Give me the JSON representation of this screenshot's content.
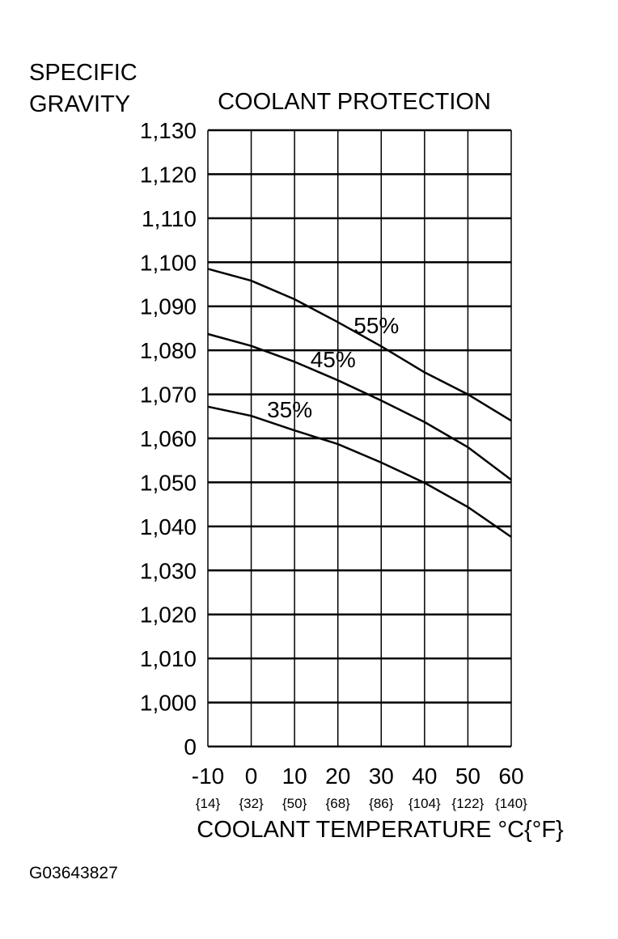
{
  "chart_data": {
    "type": "line",
    "title": "COOLANT PROTECTION",
    "ylabel": [
      "SPECIFIC",
      "GRAVITY"
    ],
    "xlabel": "COOLANT TEMPERATURE  °C{°F}",
    "note": "G03643827",
    "x": [
      -10,
      0,
      10,
      20,
      30,
      40,
      50,
      60
    ],
    "xlim": [
      -10,
      60
    ],
    "xticks": [
      -10,
      0,
      10,
      20,
      30,
      40,
      50,
      60
    ],
    "xtick_sublabels": [
      "{14}",
      "{32}",
      "{50}",
      "{68}",
      "{86}",
      "{104}",
      "{122}",
      "{140}"
    ],
    "ylim": [
      0.99,
      1.13
    ],
    "yticks": [
      0,
      {
        "value": 1.0,
        "label": "1,000"
      },
      {
        "value": 1.01,
        "label": "1,010"
      },
      {
        "value": 1.02,
        "label": "1,020"
      },
      {
        "value": 1.03,
        "label": "1,030"
      },
      {
        "value": 1.04,
        "label": "1,040"
      },
      {
        "value": 1.05,
        "label": "1,050"
      },
      {
        "value": 1.06,
        "label": "1,060"
      },
      {
        "value": 1.07,
        "label": "1,070"
      },
      {
        "value": 1.08,
        "label": "1,080"
      },
      {
        "value": 1.09,
        "label": "1,090"
      },
      {
        "value": 1.1,
        "label": "1,100"
      },
      {
        "value": 1.11,
        "label": "1,110"
      },
      {
        "value": 1.12,
        "label": "1,120"
      },
      {
        "value": 1.13,
        "label": "1,130"
      }
    ],
    "grid": true,
    "series": [
      {
        "name": "55%",
        "color": "#000000",
        "values": [
          1.0985,
          1.0958,
          1.0916,
          1.0864,
          1.0809,
          1.075,
          1.07,
          1.064
        ]
      },
      {
        "name": "45%",
        "color": "#000000",
        "values": [
          1.0837,
          1.081,
          1.0774,
          1.0732,
          1.0686,
          1.0637,
          1.058,
          1.0506
        ]
      },
      {
        "name": "35%",
        "color": "#000000",
        "values": [
          1.0672,
          1.0651,
          1.0618,
          1.0587,
          1.0545,
          1.0499,
          1.0444,
          1.0376
        ]
      }
    ]
  }
}
